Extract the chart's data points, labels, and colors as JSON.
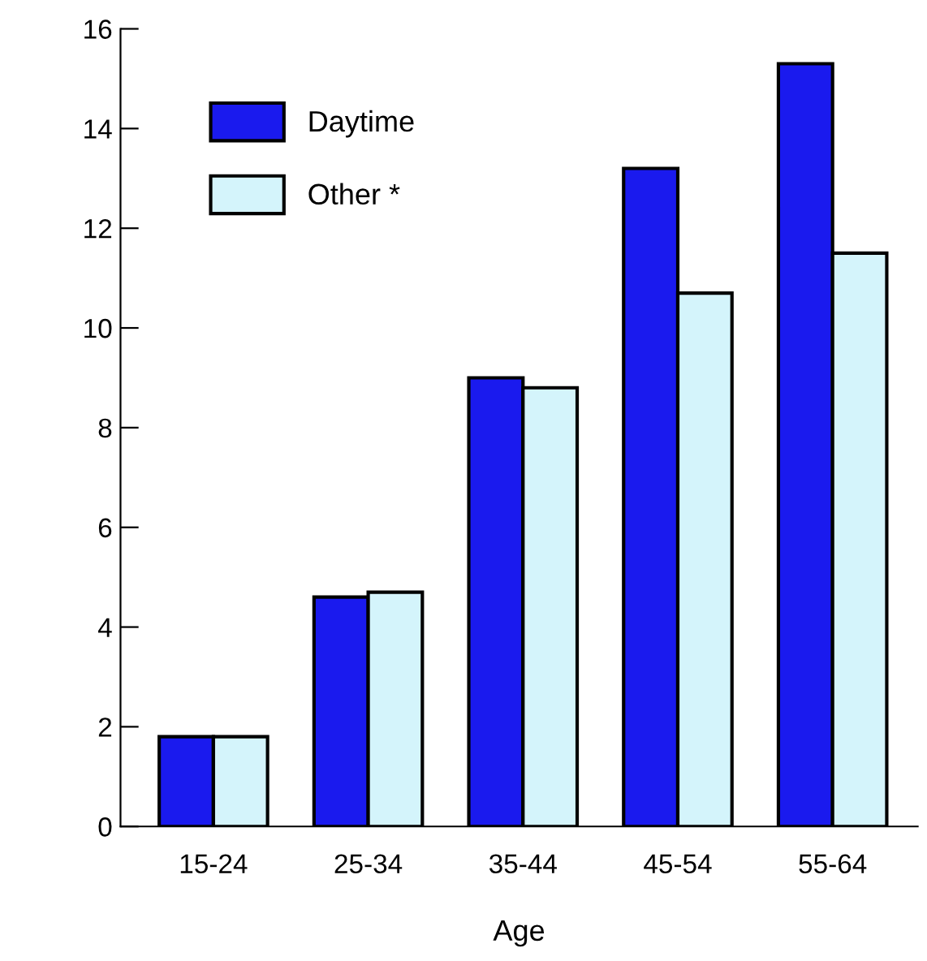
{
  "chart_data": {
    "type": "bar",
    "xlabel": "Age",
    "categories": [
      "15-24",
      "25-34",
      "35-44",
      "45-54",
      "55-64"
    ],
    "series": [
      {
        "name": "Daytime",
        "color": "#1a1aee",
        "values": [
          1.8,
          4.6,
          9.0,
          13.2,
          15.3
        ]
      },
      {
        "name": "Other *",
        "color": "#d4f4fb",
        "values": [
          1.8,
          4.7,
          8.8,
          10.7,
          11.5
        ]
      }
    ],
    "ylim": [
      0,
      16
    ],
    "yticks": [
      0,
      2,
      4,
      6,
      8,
      10,
      12,
      14,
      16
    ],
    "grid": false,
    "legend": "top left"
  }
}
